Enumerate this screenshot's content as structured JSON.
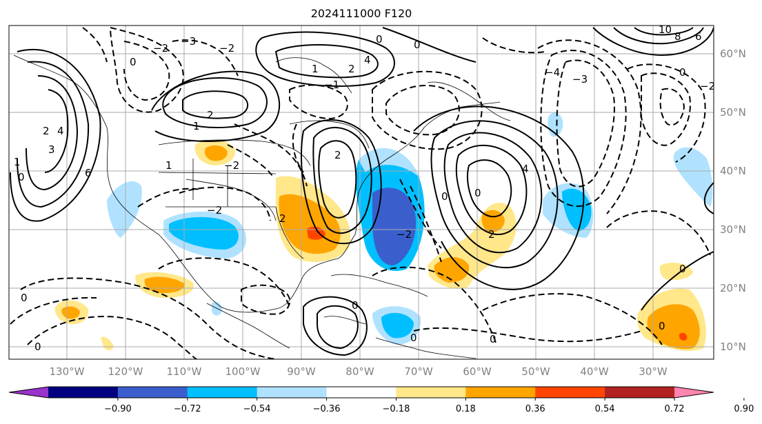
{
  "title": "2024111000 F120",
  "lon_labels": [
    "130°W",
    "120°W",
    "110°W",
    "100°W",
    "90°W",
    "80°W",
    "70°W",
    "60°W",
    "50°W",
    "40°W",
    "30°W"
  ],
  "lat_labels": [
    "60°N",
    "50°N",
    "40°N",
    "30°N",
    "20°N",
    "10°N"
  ],
  "colorbar": {
    "ticks": [
      "−0.90",
      "−0.72",
      "−0.54",
      "−0.36",
      "−0.18",
      "0.18",
      "0.36",
      "0.54",
      "0.72",
      "0.90"
    ],
    "colors": [
      "#9933cc",
      "#000080",
      "#3a5fcd",
      "#00bfff",
      "#b0e2ff",
      "#ffffff",
      "#ffe78a",
      "#ffa500",
      "#ff4500",
      "#b22222",
      "#ff85b0"
    ]
  },
  "contour_labels": [
    "0",
    "1",
    "2",
    "3",
    "4",
    "6",
    "8",
    "10",
    "−1",
    "−2",
    "−3",
    "−4"
  ]
}
